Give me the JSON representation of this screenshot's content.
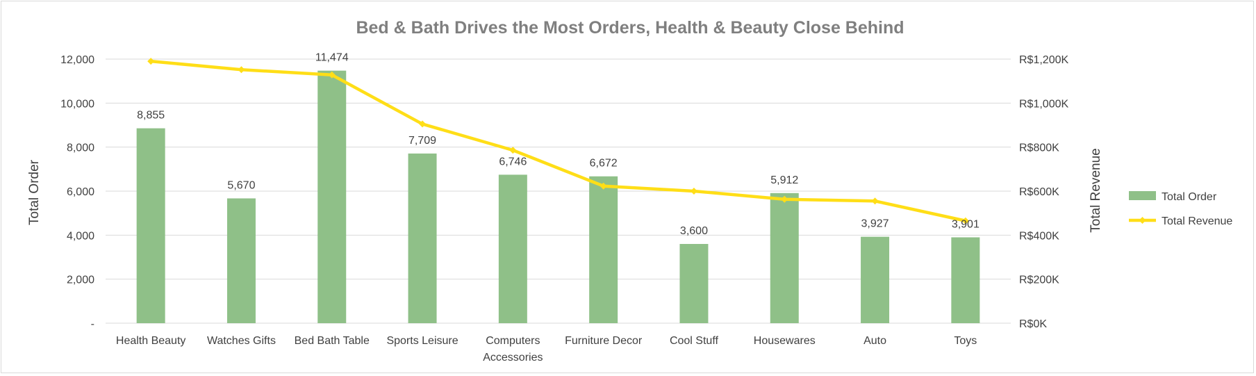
{
  "chart_data": {
    "type": "bar",
    "title": "Bed & Bath Drives the Most Orders, Health & Beauty Close Behind",
    "categories": [
      [
        "Health Beauty"
      ],
      [
        "Watches Gifts"
      ],
      [
        "Bed Bath Table"
      ],
      [
        "Sports Leisure"
      ],
      [
        "Computers",
        "Accessories"
      ],
      [
        "Furniture Decor"
      ],
      [
        "Cool Stuff"
      ],
      [
        "Housewares"
      ],
      [
        "Auto"
      ],
      [
        "Toys"
      ]
    ],
    "series": [
      {
        "name": "Total Order",
        "type": "bar",
        "axis": "left",
        "color": "#8fc088",
        "values": [
          8855,
          5670,
          11474,
          7709,
          6746,
          6672,
          3600,
          5912,
          3927,
          3901
        ],
        "labels": [
          "8,855",
          "5,670",
          "11,474",
          "7,709",
          "6,746",
          "6,672",
          "3,600",
          "5,912",
          "3,927",
          "3,901"
        ]
      },
      {
        "name": "Total Revenue",
        "type": "line",
        "axis": "right",
        "color": "#ffde17",
        "values": [
          1190,
          1152,
          1128,
          905,
          786,
          623,
          600,
          563,
          555,
          465
        ]
      }
    ],
    "ylabel": "Total Order",
    "ylim": [
      0,
      12000
    ],
    "yticks": [
      {
        "value": 0,
        "label": "-"
      },
      {
        "value": 2000,
        "label": "2,000"
      },
      {
        "value": 4000,
        "label": "4,000"
      },
      {
        "value": 6000,
        "label": "6,000"
      },
      {
        "value": 8000,
        "label": "8,000"
      },
      {
        "value": 10000,
        "label": "10,000"
      },
      {
        "value": 12000,
        "label": "12,000"
      }
    ],
    "y2label": "Total Revenue",
    "y2lim": [
      0,
      1200
    ],
    "y2ticks": [
      {
        "value": 0,
        "label": "R$0K"
      },
      {
        "value": 200,
        "label": "R$200K"
      },
      {
        "value": 400,
        "label": "R$400K"
      },
      {
        "value": 600,
        "label": "R$600K"
      },
      {
        "value": 800,
        "label": "R$800K"
      },
      {
        "value": 1000,
        "label": "R$1,000K"
      },
      {
        "value": 1200,
        "label": "R$1,200K"
      }
    ],
    "grid": true,
    "legend": {
      "placement": "right",
      "entries": [
        {
          "label": "Total Order",
          "symbol": "bar",
          "color": "#8fc088"
        },
        {
          "label": "Total Revenue",
          "symbol": "line-marker",
          "color": "#ffde17"
        }
      ]
    }
  }
}
